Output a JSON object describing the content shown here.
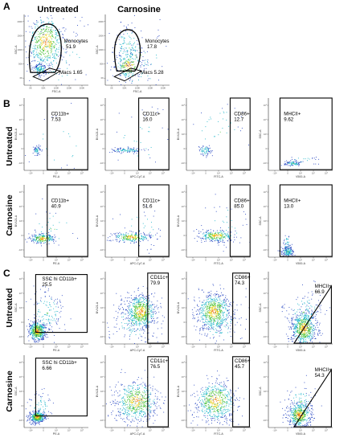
{
  "panel_letters": {
    "A": "A",
    "B": "B",
    "C": "C"
  },
  "row_labels": {
    "untreated": "Untreated",
    "carnosine": "Carnosine"
  },
  "col_titles": {
    "untreated": "Untreated",
    "carnosine": "Carnosine"
  },
  "palette": {
    "blue": "#1f3fbf",
    "cyan": "#19b4c8",
    "green": "#4cc23a",
    "yellow": "#e8d21e",
    "orange": "#f07a12",
    "gate": "#000000"
  },
  "chart_data": [
    {
      "type": "scatter",
      "panel": "A",
      "condition": "Untreated",
      "xlabel": "FSC-A",
      "ylabel": "SSC-A",
      "gates": [
        {
          "name": "Monocytes",
          "value": "51.9"
        },
        {
          "name": "Macs",
          "value": "1.65"
        }
      ]
    },
    {
      "type": "scatter",
      "panel": "A",
      "condition": "Carnosine",
      "xlabel": "FSC-A",
      "ylabel": "SSC-A",
      "gates": [
        {
          "name": "Monocytes",
          "value": "17.8"
        },
        {
          "name": "Macs",
          "value": "5.28"
        }
      ]
    },
    {
      "type": "scatter",
      "panel": "B",
      "condition": "Untreated",
      "xlabel": "PE-A",
      "ylabel": "BV421-A",
      "gates": [
        {
          "name": "CD11b+",
          "value": "7.53"
        }
      ]
    },
    {
      "type": "scatter",
      "panel": "B",
      "condition": "Untreated",
      "xlabel": "APC-Cy7-A",
      "ylabel": "BV421-A",
      "gates": [
        {
          "name": "CD11c+",
          "value": "16.0"
        }
      ]
    },
    {
      "type": "scatter",
      "panel": "B",
      "condition": "Untreated",
      "xlabel": "FITC-A",
      "ylabel": "BV421-A",
      "gates": [
        {
          "name": "CD86+",
          "value": "12.7"
        }
      ]
    },
    {
      "type": "scatter",
      "panel": "B",
      "condition": "Untreated",
      "xlabel": "V500-A",
      "ylabel": "SSC-A",
      "gates": [
        {
          "name": "MHCII+",
          "value": "9.62"
        }
      ]
    },
    {
      "type": "scatter",
      "panel": "B",
      "condition": "Carnosine",
      "xlabel": "PE-A",
      "ylabel": "BV421-A",
      "gates": [
        {
          "name": "CD11b+",
          "value": "40.9"
        }
      ]
    },
    {
      "type": "scatter",
      "panel": "B",
      "condition": "Carnosine",
      "xlabel": "APC-Cy7-A",
      "ylabel": "BV421-A",
      "gates": [
        {
          "name": "CD11c+",
          "value": "51.6"
        }
      ]
    },
    {
      "type": "scatter",
      "panel": "B",
      "condition": "Carnosine",
      "xlabel": "FITC-A",
      "ylabel": "BV421-A",
      "gates": [
        {
          "name": "CD86+",
          "value": "85.0"
        }
      ]
    },
    {
      "type": "scatter",
      "panel": "B",
      "condition": "Carnosine",
      "xlabel": "V500-A",
      "ylabel": "SSC-A",
      "gates": [
        {
          "name": "MHCII+",
          "value": "13.0"
        }
      ]
    },
    {
      "type": "scatter",
      "panel": "C",
      "condition": "Untreated",
      "xlabel": "PE-A",
      "ylabel": "SSC-A",
      "gates": [
        {
          "name": "SSC hi CD11b+",
          "value": "25.5"
        }
      ]
    },
    {
      "type": "scatter",
      "panel": "C",
      "condition": "Untreated",
      "xlabel": "APC-Cy7-A",
      "ylabel": "BV421-A",
      "gates": [
        {
          "name": "CD11c+",
          "value": "79.9"
        }
      ]
    },
    {
      "type": "scatter",
      "panel": "C",
      "condition": "Untreated",
      "xlabel": "FITC-A",
      "ylabel": "BV421-A",
      "gates": [
        {
          "name": "CD86+",
          "value": "74.3"
        }
      ]
    },
    {
      "type": "scatter",
      "panel": "C",
      "condition": "Untreated",
      "xlabel": "V500-A",
      "ylabel": "SSC-A",
      "gates": [
        {
          "name": "MHCII+",
          "value": "66.9"
        }
      ]
    },
    {
      "type": "scatter",
      "panel": "C",
      "condition": "Carnosine",
      "xlabel": "PE-A",
      "ylabel": "SSC-A",
      "gates": [
        {
          "name": "SSC hi CD11b+",
          "value": "6.66"
        }
      ]
    },
    {
      "type": "scatter",
      "panel": "C",
      "condition": "Carnosine",
      "xlabel": "APC-Cy7-A",
      "ylabel": "BV421-A",
      "gates": [
        {
          "name": "CD11c+",
          "value": "76.5"
        }
      ]
    },
    {
      "type": "scatter",
      "panel": "C",
      "condition": "Carnosine",
      "xlabel": "FITC-A",
      "ylabel": "BV421-A",
      "gates": [
        {
          "name": "CD86+",
          "value": "45.7"
        }
      ]
    },
    {
      "type": "scatter",
      "panel": "C",
      "condition": "Carnosine",
      "xlabel": "V500-A",
      "ylabel": "SSC-A",
      "gates": [
        {
          "name": "MHCII+",
          "value": "54.3"
        }
      ]
    }
  ]
}
